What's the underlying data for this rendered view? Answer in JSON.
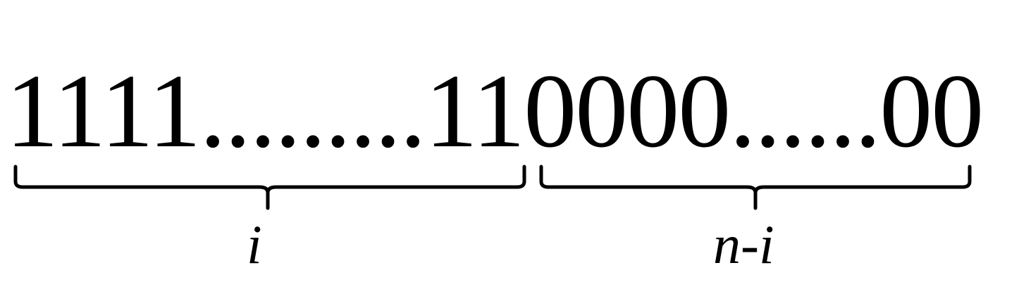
{
  "diagram": {
    "ones_part": "1111.........11",
    "zeros_part": "0000......00",
    "left_brace_label": "i",
    "right_brace_label": "n-i"
  }
}
